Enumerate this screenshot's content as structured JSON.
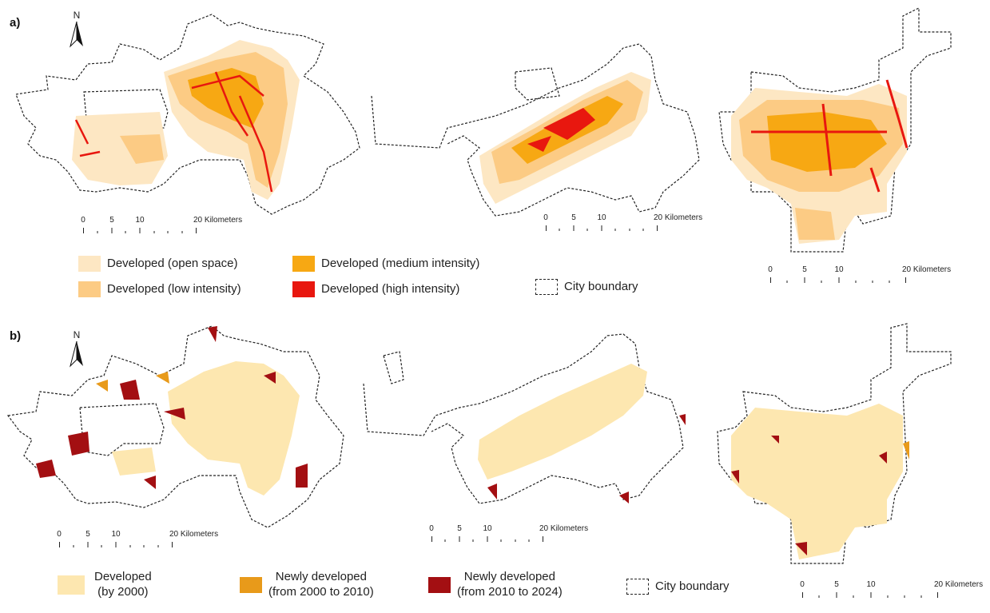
{
  "panels": {
    "a": {
      "label": "a)",
      "north": "N",
      "scalebars": [
        {
          "ticks": [
            "0",
            "5",
            "10",
            "20 Kilometers"
          ]
        },
        {
          "ticks": [
            "0",
            "5",
            "10",
            "20 Kilometers"
          ]
        },
        {
          "ticks": [
            "0",
            "5",
            "10",
            "20 Kilometers"
          ]
        }
      ],
      "legend": [
        {
          "label": "Developed (open space)",
          "color": "#fde7c3"
        },
        {
          "label": "Developed (low intensity)",
          "color": "#fccb84"
        },
        {
          "label": "Developed (medium intensity)",
          "color": "#f7a813"
        },
        {
          "label": "Developed (high intensity)",
          "color": "#e8170f"
        },
        {
          "label": "City boundary",
          "color": "#222222"
        }
      ]
    },
    "b": {
      "label": "b)",
      "north": "N",
      "scalebars": [
        {
          "ticks": [
            "0",
            "5",
            "10",
            "20 Kilometers"
          ]
        },
        {
          "ticks": [
            "0",
            "5",
            "10",
            "20 Kilometers"
          ]
        },
        {
          "ticks": [
            "0",
            "5",
            "10",
            "20 Kilometers"
          ]
        }
      ],
      "legend": [
        {
          "line1": "Developed",
          "line2": "(by 2000)",
          "color": "#fde7b0"
        },
        {
          "line1": "Newly developed",
          "line2": "(from 2000 to 2010)",
          "color": "#e89a1a"
        },
        {
          "line1": "Newly developed",
          "line2": "(from 2010 to 2024)",
          "color": "#a30f12"
        },
        {
          "line1": "City boundary",
          "color": "#222222"
        }
      ]
    }
  }
}
